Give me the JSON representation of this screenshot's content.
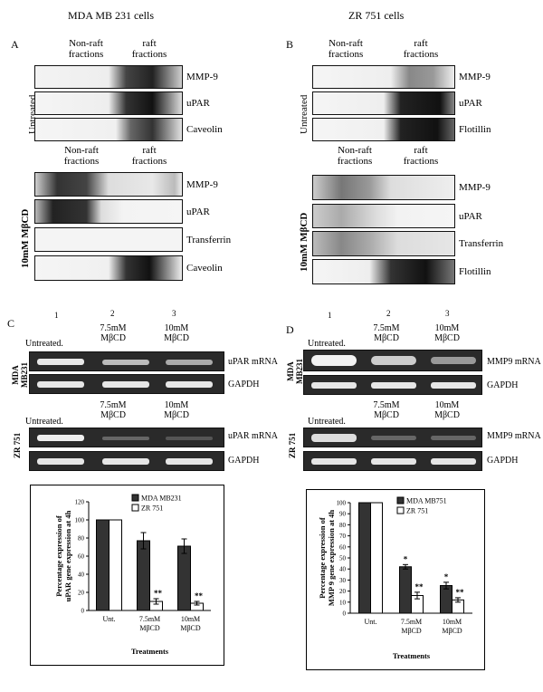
{
  "headers": {
    "left": "MDA MB 231 cells",
    "right": "ZR 751 cells"
  },
  "panel_letters": {
    "A": "A",
    "B": "B",
    "C": "C",
    "D": "D"
  },
  "blot_common": {
    "nonraft": [
      "Non-raft",
      "fractions"
    ],
    "raft": [
      "raft",
      "fractions"
    ],
    "untreated": "Untreated",
    "mbcd": "10mM MβCD"
  },
  "panelA": {
    "top_labels": [
      "MMP-9",
      "uPAR",
      "Caveolin"
    ],
    "bottom_labels": [
      "MMP-9",
      "uPAR",
      "Transferrin",
      "Caveolin"
    ]
  },
  "panelB": {
    "top_labels": [
      "MMP-9",
      "uPAR",
      "Flotillin"
    ],
    "bottom_labels": [
      "MMP-9",
      "uPAR",
      "Transferrin",
      "Flotillin"
    ]
  },
  "gel_common": {
    "lanes": [
      "1",
      "2",
      "3"
    ],
    "untreated": "Untreated.",
    "t2": [
      "7.5mM",
      "MβCD"
    ],
    "t3": [
      "10mM",
      "MβCD"
    ],
    "mda": [
      "MDA",
      "MB231"
    ],
    "zr": "ZR 751",
    "gapdh": "GAPDH"
  },
  "panelC": {
    "mrna": "uPAR mRNA"
  },
  "panelD": {
    "mrna": "MMP9 mRNA"
  },
  "chart_data": [
    {
      "type": "bar",
      "categories": [
        "Unt.",
        "7.5mM MβCD",
        "10mM MβCD"
      ],
      "category_lines": [
        [
          "Unt."
        ],
        [
          "7.5mM",
          "MβCD"
        ],
        [
          "10mM",
          "MβCD"
        ]
      ],
      "series": [
        {
          "name": "MDA MB231",
          "values": [
            100,
            77,
            71
          ],
          "errors": [
            0,
            9,
            8
          ],
          "color": "#333333",
          "sig": [
            "",
            "",
            ""
          ]
        },
        {
          "name": "ZR 751",
          "values": [
            100,
            10,
            8
          ],
          "errors": [
            0,
            3,
            2
          ],
          "color": "#ffffff",
          "sig": [
            "",
            "**",
            "**"
          ]
        }
      ],
      "ylabel": [
        "Percentage expression of",
        "uPAR gene expression at 4h"
      ],
      "xlabel": "Treatments",
      "yticks": [
        0,
        20,
        40,
        60,
        80,
        100,
        120
      ],
      "ylim": [
        0,
        120
      ],
      "legend": "top-right"
    },
    {
      "type": "bar",
      "categories": [
        "Unt.",
        "7.5mM MβCD",
        "10mM MβCD"
      ],
      "category_lines": [
        [
          "Unt."
        ],
        [
          "7.5mM",
          "MβCD"
        ],
        [
          "10mM",
          "MβCD"
        ]
      ],
      "series": [
        {
          "name": "MDA MB751",
          "values": [
            100,
            42,
            25
          ],
          "errors": [
            0,
            2,
            3
          ],
          "color": "#333333",
          "sig": [
            "",
            "*",
            "*"
          ]
        },
        {
          "name": "ZR 751",
          "values": [
            100,
            16,
            12
          ],
          "errors": [
            0,
            3,
            2
          ],
          "color": "#ffffff",
          "sig": [
            "",
            "**",
            "**"
          ]
        }
      ],
      "ylabel": [
        "Percentage expression of",
        "MMP 9 gene expression at 4h"
      ],
      "xlabel": "Treatments",
      "yticks": [
        0,
        10,
        20,
        30,
        40,
        50,
        60,
        70,
        80,
        90,
        100
      ],
      "ylim": [
        0,
        100
      ],
      "legend": "top-right"
    }
  ]
}
